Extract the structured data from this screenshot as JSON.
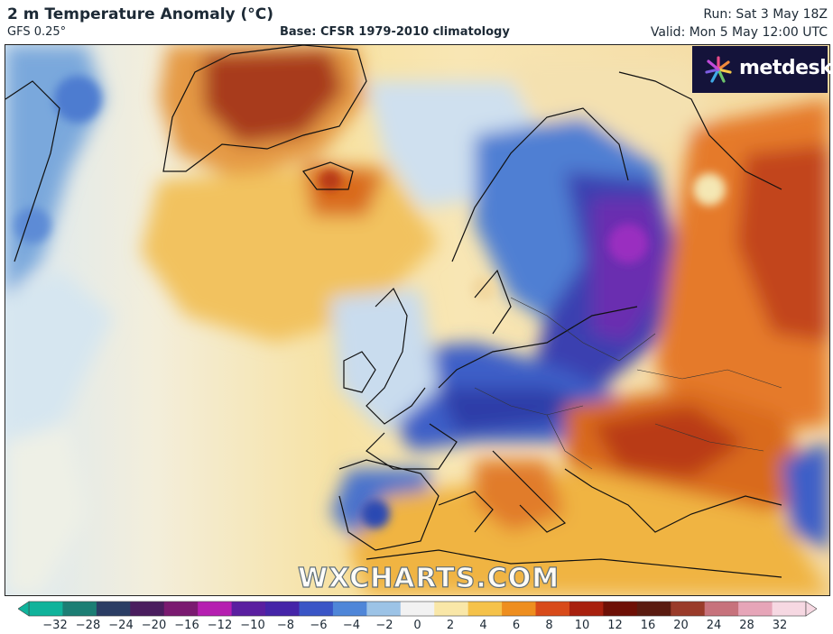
{
  "header": {
    "title": "2 m Temperature Anomaly (°C)",
    "model": "GFS 0.25°",
    "base": "Base: CFSR 1979-2010 climatology",
    "run": "Run: Sat 3 May 18Z",
    "valid": "Valid: Mon 5 May 12:00 UTC"
  },
  "logo": {
    "text": "metdesk",
    "icon": "metdesk-star-icon"
  },
  "watermark": "WXCHARTS.COM",
  "colorbar": {
    "ticks": [
      "−32",
      "−28",
      "−24",
      "−20",
      "−16",
      "−12",
      "−10",
      "−8",
      "−6",
      "−4",
      "−2",
      "0",
      "2",
      "4",
      "6",
      "8",
      "10",
      "12",
      "16",
      "20",
      "24",
      "28",
      "32"
    ],
    "colors": [
      "#10b39b",
      "#1c7e74",
      "#2b3d64",
      "#4a1d5e",
      "#7a1a70",
      "#b51fb0",
      "#5a1fa0",
      "#4525a8",
      "#3a55c6",
      "#4f86d8",
      "#9cc3e6",
      "#f2f2f2",
      "#f9e7a8",
      "#f5c24a",
      "#ee8e1f",
      "#d84a1a",
      "#a8200e",
      "#6e1006",
      "#5a1b10",
      "#9a3b2a",
      "#c7727c",
      "#e6a5b8",
      "#f6d8e2"
    ]
  },
  "colors": {
    "ocean_neutral": "#f4e6b8",
    "cold": "#3d5fc7",
    "very_cold": "#5a1fa0",
    "warm": "#ee8e1f",
    "hot": "#a8200e"
  }
}
